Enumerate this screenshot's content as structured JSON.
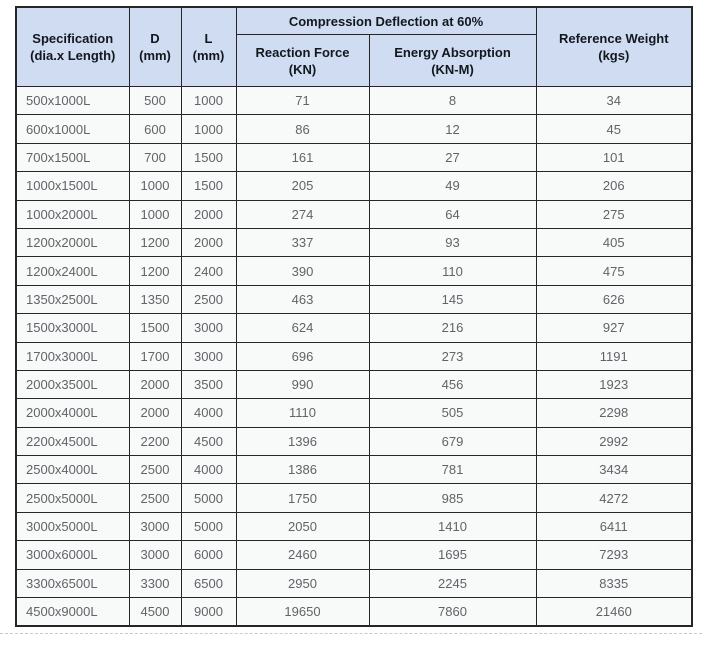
{
  "colors": {
    "header_background": "#cfdcf2",
    "row_background": "#f7faf9",
    "border": "#262626",
    "header_text": "#13181f",
    "cell_text": "#606468"
  },
  "table": {
    "header": {
      "spec_line1": "Specification",
      "spec_line2": "(dia.x Length)",
      "d_line1": "D",
      "d_line2": "(mm)",
      "l_line1": "L",
      "l_line2": "(mm)",
      "group": "Compression Deflection at 60%",
      "reaction_line1": "Reaction Force",
      "reaction_line2": "(KN)",
      "energy_line1": "Energy Absorption",
      "energy_line2": "(KN-M)",
      "weight_line1": "Reference Weight",
      "weight_line2": "(kgs)"
    },
    "column_keys": [
      "specification",
      "d-mm",
      "l-mm",
      "reaction-force-kn",
      "energy-absorption-kn-m",
      "reference-weight-kgs"
    ],
    "rows": [
      [
        "500x1000L",
        "500",
        "1000",
        "71",
        "8",
        "34"
      ],
      [
        "600x1000L",
        "600",
        "1000",
        "86",
        "12",
        "45"
      ],
      [
        "700x1500L",
        "700",
        "1500",
        "161",
        "27",
        "101"
      ],
      [
        "1000x1500L",
        "1000",
        "1500",
        "205",
        "49",
        "206"
      ],
      [
        "1000x2000L",
        "1000",
        "2000",
        "274",
        "64",
        "275"
      ],
      [
        "1200x2000L",
        "1200",
        "2000",
        "337",
        "93",
        "405"
      ],
      [
        "1200x2400L",
        "1200",
        "2400",
        "390",
        "110",
        "475"
      ],
      [
        "1350x2500L",
        "1350",
        "2500",
        "463",
        "145",
        "626"
      ],
      [
        "1500x3000L",
        "1500",
        "3000",
        "624",
        "216",
        "927"
      ],
      [
        "1700x3000L",
        "1700",
        "3000",
        "696",
        "273",
        "1191"
      ],
      [
        "2000x3500L",
        "2000",
        "3500",
        "990",
        "456",
        "1923"
      ],
      [
        "2000x4000L",
        "2000",
        "4000",
        "1110",
        "505",
        "2298"
      ],
      [
        "2200x4500L",
        "2200",
        "4500",
        "1396",
        "679",
        "2992"
      ],
      [
        "2500x4000L",
        "2500",
        "4000",
        "1386",
        "781",
        "3434"
      ],
      [
        "2500x5000L",
        "2500",
        "5000",
        "1750",
        "985",
        "4272"
      ],
      [
        "3000x5000L",
        "3000",
        "5000",
        "2050",
        "1410",
        "6411"
      ],
      [
        "3000x6000L",
        "3000",
        "6000",
        "2460",
        "1695",
        "7293"
      ],
      [
        "3300x6500L",
        "3300",
        "6500",
        "2950",
        "2245",
        "8335"
      ],
      [
        "4500x9000L",
        "4500",
        "9000",
        "19650",
        "7860",
        "21460"
      ]
    ]
  }
}
